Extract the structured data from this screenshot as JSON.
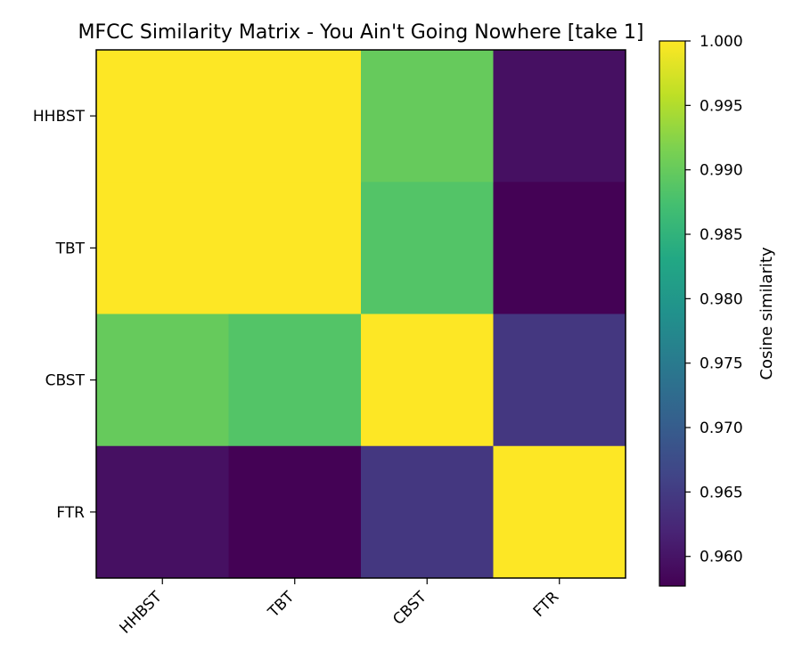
{
  "chart_data": {
    "type": "heatmap",
    "title": "MFCC Similarity Matrix - You Ain't Going Nowhere [take 1]",
    "row_labels": [
      "HHBST",
      "TBT",
      "CBST",
      "FTR"
    ],
    "col_labels": [
      "HHBST",
      "TBT",
      "CBST",
      "FTR"
    ],
    "values": [
      [
        1.0,
        1.0,
        0.99,
        0.9595
      ],
      [
        1.0,
        1.0,
        0.9885,
        0.9578
      ],
      [
        0.99,
        0.9885,
        1.0,
        0.9645
      ],
      [
        0.9595,
        0.9578,
        0.9645,
        1.0
      ]
    ],
    "colormap": "viridis",
    "colorbar": {
      "label": "Cosine similarity",
      "range": [
        0.9577,
        1.0
      ],
      "ticks": [
        "0.960",
        "0.965",
        "0.970",
        "0.975",
        "0.980",
        "0.985",
        "0.990",
        "0.995",
        "1.000"
      ]
    },
    "grid": false
  }
}
